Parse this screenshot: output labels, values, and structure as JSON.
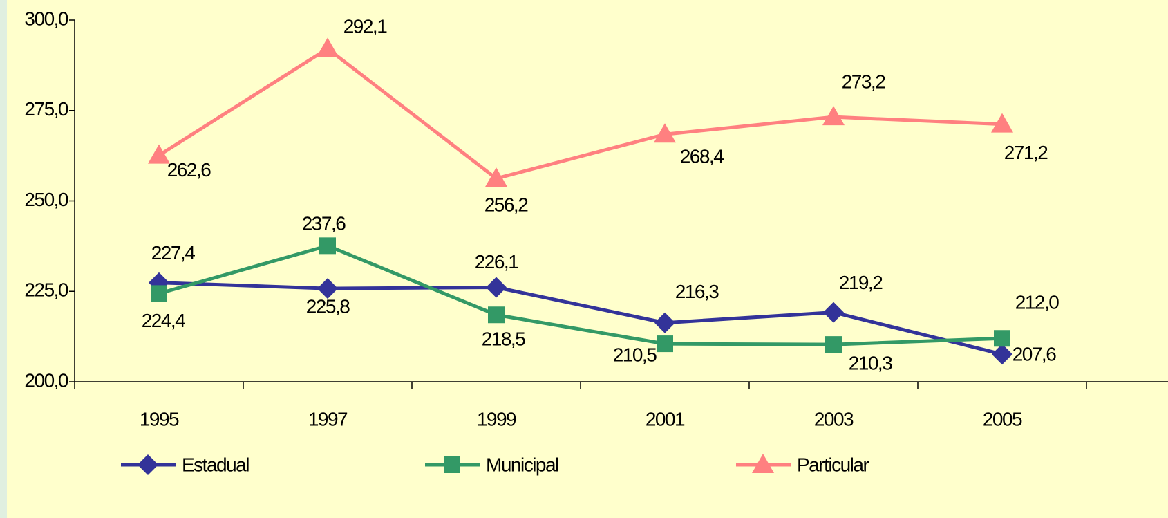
{
  "chart_data": {
    "type": "line",
    "categories": [
      "1995",
      "1997",
      "1999",
      "2001",
      "2003",
      "2005"
    ],
    "series": [
      {
        "name": "Estadual",
        "color": "#333399",
        "marker": "diamond",
        "values": [
          227.4,
          225.8,
          226.1,
          216.3,
          219.2,
          207.6
        ],
        "value_labels": [
          "227,4",
          "225,8",
          "226,1",
          "216,3",
          "219,2",
          "207,6"
        ]
      },
      {
        "name": "Municipal",
        "color": "#339966",
        "marker": "square",
        "values": [
          224.4,
          237.6,
          218.5,
          210.5,
          210.3,
          212.0
        ],
        "value_labels": [
          "224,4",
          "237,6",
          "218,5",
          "210,5",
          "210,3",
          "212,0"
        ]
      },
      {
        "name": "Particular",
        "color": "#ff8080",
        "marker": "triangle",
        "values": [
          262.6,
          292.1,
          256.2,
          268.4,
          273.2,
          271.2
        ],
        "value_labels": [
          "262,6",
          "292,1",
          "256,2",
          "268,4",
          "273,2",
          "271,2"
        ]
      }
    ],
    "ylim": [
      200,
      300
    ],
    "yticks": [
      {
        "value": 200,
        "label": "200,0"
      },
      {
        "value": 225,
        "label": "225,0"
      },
      {
        "value": 250,
        "label": "250,0"
      },
      {
        "value": 275,
        "label": "275,0"
      },
      {
        "value": 300,
        "label": "300,0"
      }
    ],
    "legend": "bottom"
  }
}
